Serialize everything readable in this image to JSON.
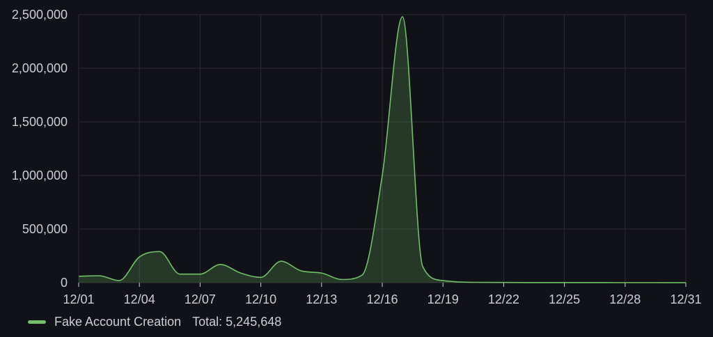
{
  "chart_data": {
    "type": "area",
    "x_tick_labels": [
      "12/01",
      "12/04",
      "12/07",
      "12/10",
      "12/13",
      "12/16",
      "12/19",
      "12/22",
      "12/25",
      "12/28",
      "12/31"
    ],
    "y_tick_labels": [
      "0",
      "500,000",
      "1,000,000",
      "1,500,000",
      "2,000,000",
      "2,500,000"
    ],
    "ylim": [
      0,
      2500000
    ],
    "xlim": [
      "12/01",
      "12/31"
    ],
    "grid": true,
    "legend_placement": "bottom-left",
    "series": [
      {
        "name": "Fake Account Creation",
        "color": "#73bf69",
        "x": [
          "12/01",
          "12/02",
          "12/03",
          "12/04",
          "12/05",
          "12/06",
          "12/07",
          "12/08",
          "12/09",
          "12/10",
          "12/11",
          "12/12",
          "12/13",
          "12/14",
          "12/15",
          "12/16",
          "12/17",
          "12/18",
          "12/19",
          "12/20",
          "12/21",
          "12/22",
          "12/23",
          "12/24",
          "12/25",
          "12/26",
          "12/27",
          "12/28",
          "12/29",
          "12/30",
          "12/31"
        ],
        "values": [
          60000,
          65000,
          20000,
          240000,
          290000,
          80000,
          80000,
          170000,
          90000,
          50000,
          200000,
          110000,
          90000,
          30000,
          70000,
          1000000,
          2480000,
          150000,
          20000,
          5000,
          3000,
          2000,
          1500,
          1200,
          1000,
          1000,
          900,
          800,
          800,
          700,
          700
        ]
      }
    ]
  },
  "legend": {
    "series_name": "Fake Account Creation",
    "total_label": "Total:",
    "total_value": "5,245,648"
  }
}
